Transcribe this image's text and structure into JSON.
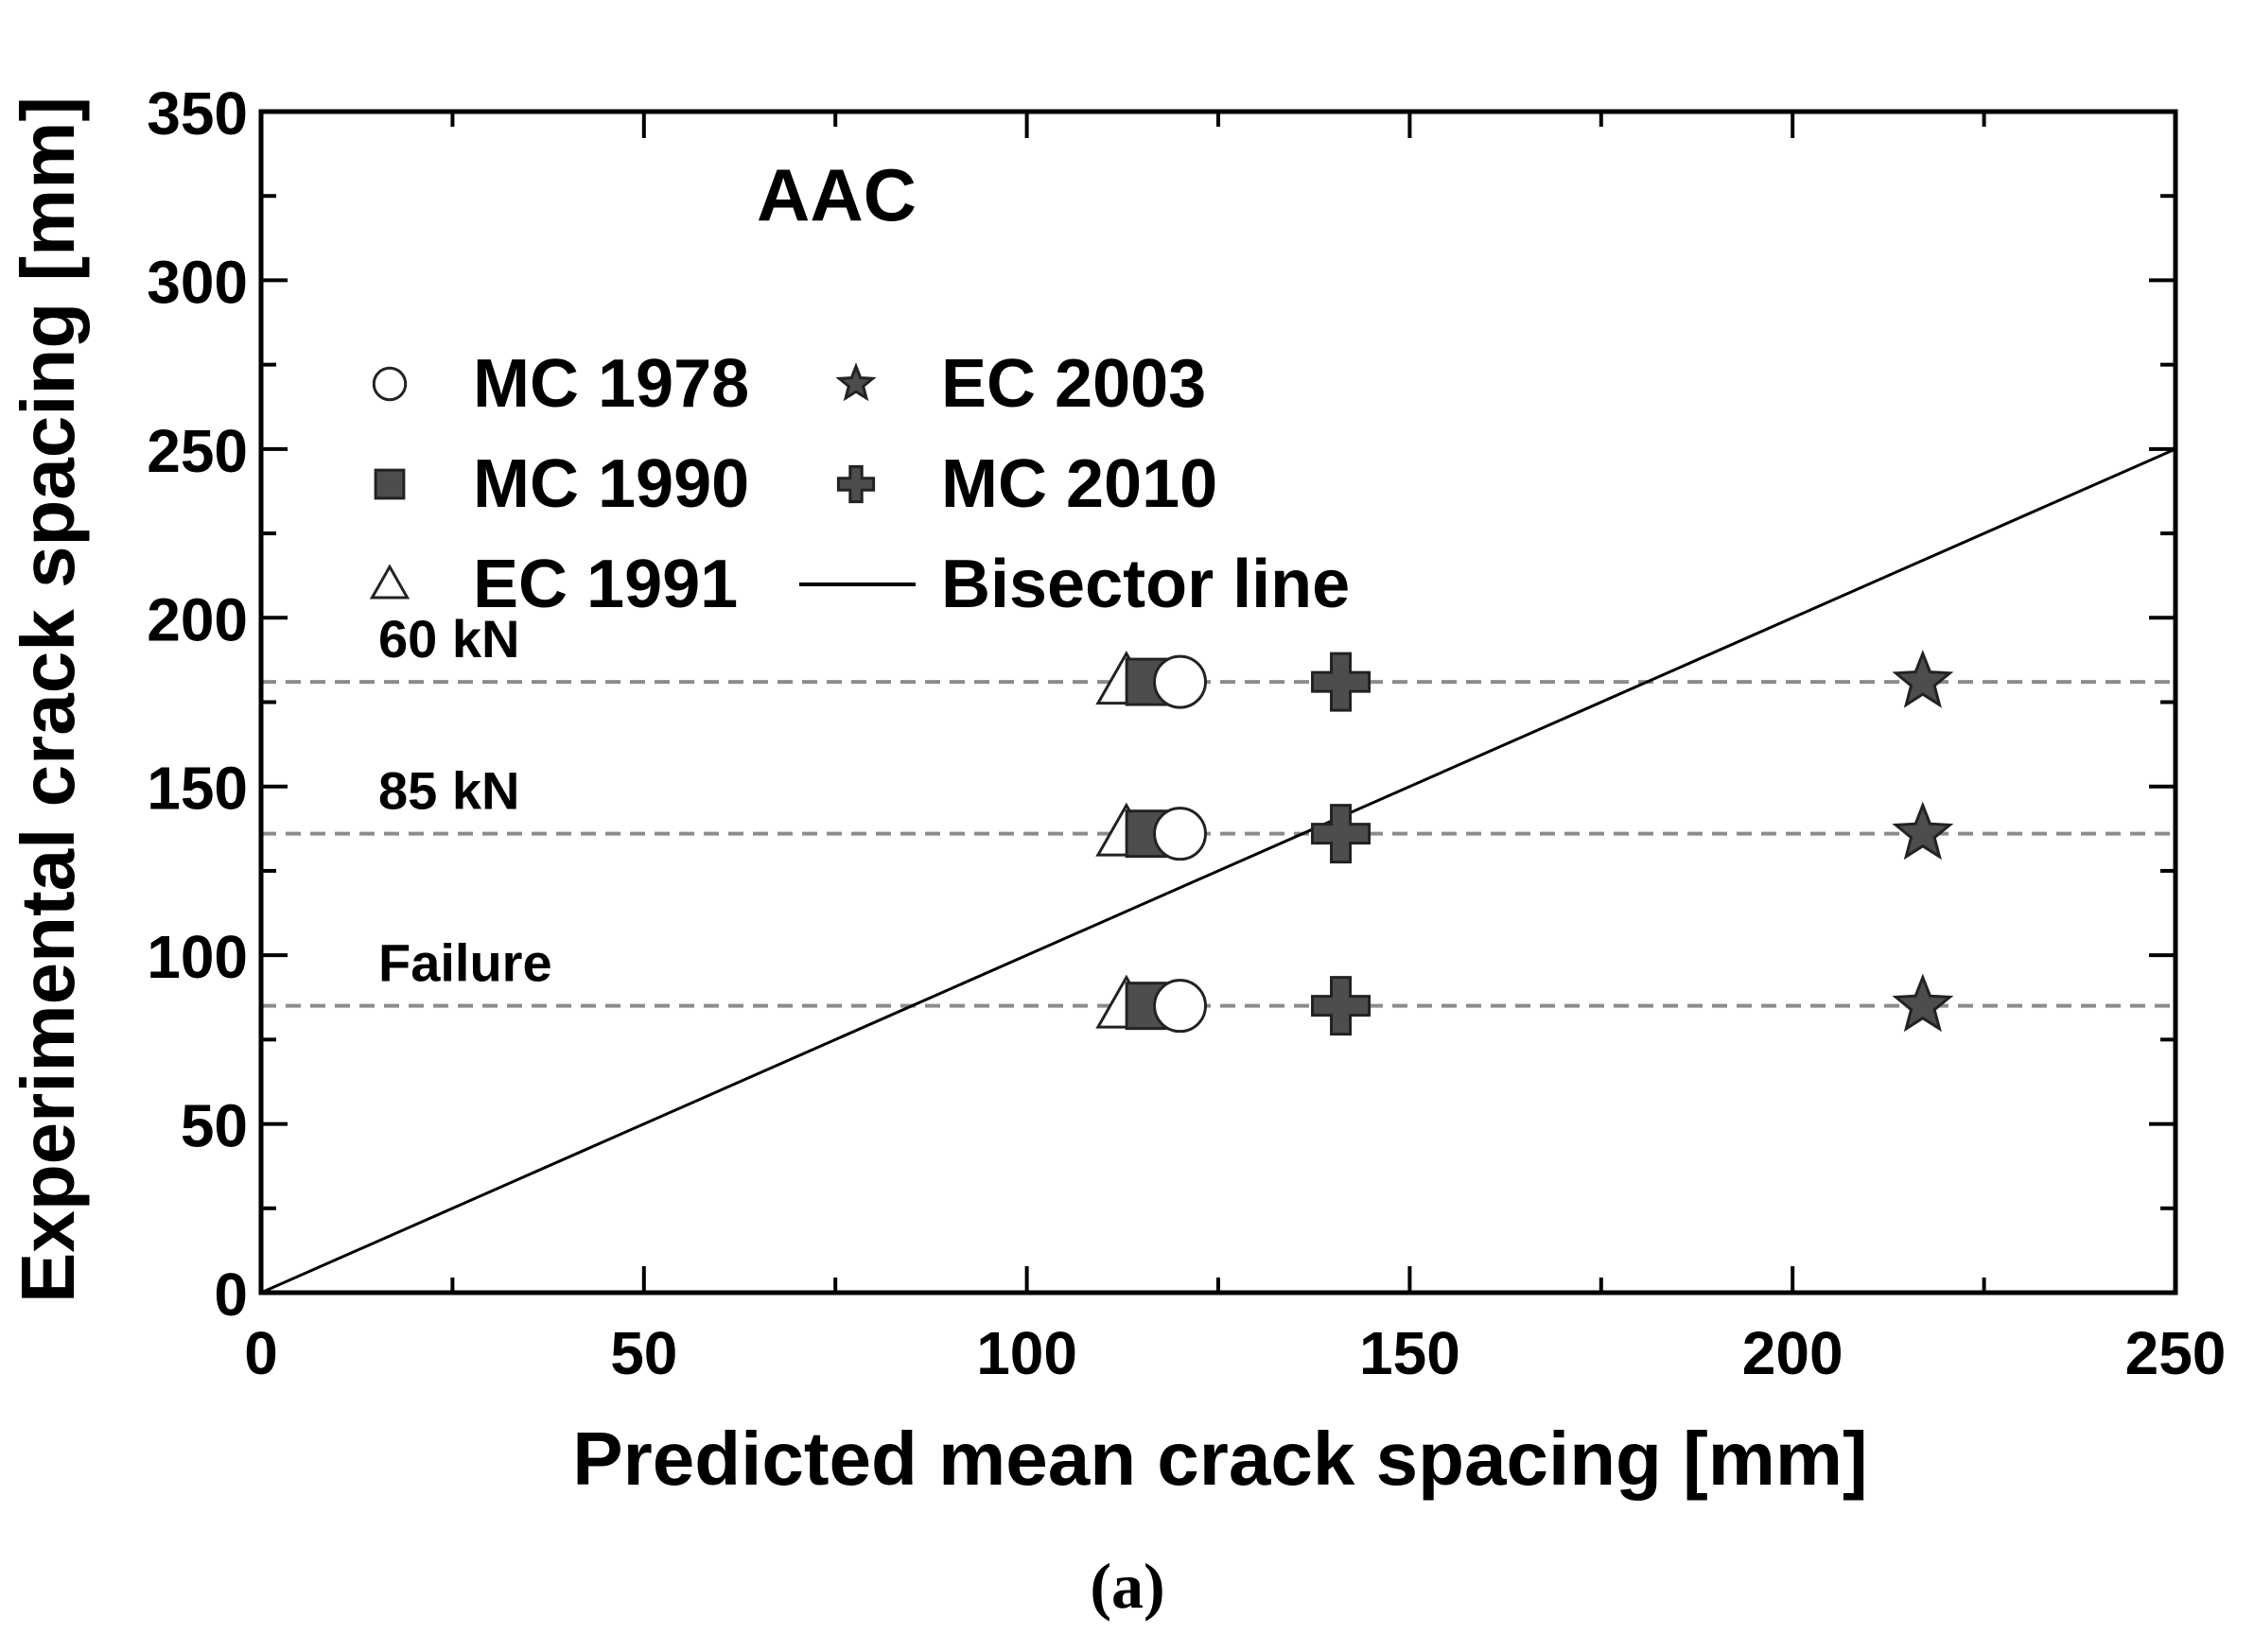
{
  "chart_data": {
    "type": "scatter",
    "title": "AAC",
    "caption": "(a)",
    "xlabel": "Predicted mean crack spacing [mm]",
    "ylabel": "Experimental crack spacing [mm]",
    "xlim": [
      0,
      250
    ],
    "ylim": [
      0,
      350
    ],
    "x_ticks": [
      "0",
      "50",
      "100",
      "150",
      "200",
      "250"
    ],
    "y_ticks": [
      "0",
      "50",
      "100",
      "150",
      "200",
      "250",
      "300",
      "350"
    ],
    "grid": false,
    "legend_position": "top-left",
    "load_levels": [
      {
        "label": "60 kN",
        "y": 181
      },
      {
        "label": "85 kN",
        "y": 136
      },
      {
        "label": "Failure",
        "y": 85
      }
    ],
    "series": [
      {
        "name": "MC 1978",
        "marker": "circle",
        "x": [
          120,
          120,
          120
        ],
        "y": [
          181,
          136,
          85
        ]
      },
      {
        "name": "MC 1990",
        "marker": "square",
        "x": [
          116,
          116,
          116
        ],
        "y": [
          181,
          136,
          85
        ]
      },
      {
        "name": "EC 1991",
        "marker": "triangle",
        "x": [
          113,
          113,
          113
        ],
        "y": [
          181,
          136,
          85
        ]
      },
      {
        "name": "EC 2003",
        "marker": "star",
        "x": [
          217,
          217,
          217
        ],
        "y": [
          181,
          136,
          85
        ]
      },
      {
        "name": "MC 2010",
        "marker": "plus",
        "x": [
          141,
          141,
          141
        ],
        "y": [
          181,
          136,
          85
        ]
      },
      {
        "name": "Bisector line",
        "marker": "line",
        "x": [
          0,
          250
        ],
        "y": [
          0,
          250
        ]
      }
    ],
    "colors": {
      "marker_fill": "#4d4d4d",
      "marker_stroke": "#222222",
      "open_fill": "#ffffff",
      "dashed": "#8c8c8c",
      "line": "#000000"
    }
  }
}
